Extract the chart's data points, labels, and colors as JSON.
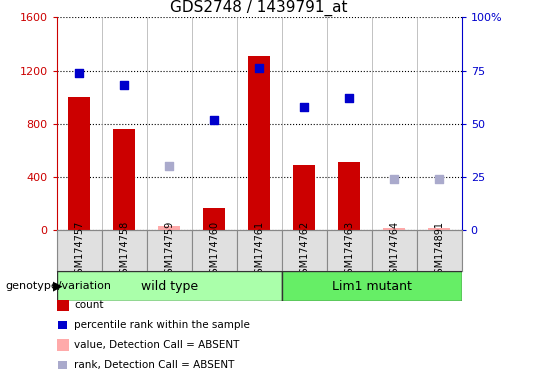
{
  "title": "GDS2748 / 1439791_at",
  "samples": [
    "GSM174757",
    "GSM174758",
    "GSM174759",
    "GSM174760",
    "GSM174761",
    "GSM174762",
    "GSM174763",
    "GSM174764",
    "GSM174891"
  ],
  "count_values": [
    1000,
    760,
    null,
    170,
    1310,
    490,
    510,
    null,
    null
  ],
  "count_absent": [
    null,
    null,
    30,
    null,
    null,
    null,
    null,
    20,
    20
  ],
  "percentile_values": [
    74,
    68,
    null,
    52,
    76,
    58,
    62,
    null,
    null
  ],
  "percentile_absent": [
    null,
    null,
    30,
    null,
    null,
    null,
    null,
    24,
    24
  ],
  "wild_type_indices": [
    0,
    1,
    2,
    3,
    4
  ],
  "lim1_mutant_indices": [
    5,
    6,
    7,
    8
  ],
  "ylim_left": [
    0,
    1600
  ],
  "ylim_right": [
    0,
    100
  ],
  "yticks_left": [
    0,
    400,
    800,
    1200,
    1600
  ],
  "yticks_right": [
    0,
    25,
    50,
    75,
    100
  ],
  "ytick_right_labels": [
    "0",
    "25",
    "50",
    "75",
    "100%"
  ],
  "bar_color": "#cc0000",
  "bar_absent_color": "#ffaaaa",
  "dot_color": "#0000cc",
  "dot_absent_color": "#aaaacc",
  "wild_type_color": "#aaffaa",
  "lim1_color": "#66ee66",
  "left_axis_color": "#cc0000",
  "right_axis_color": "#0000cc",
  "bar_width": 0.5,
  "dot_size": 40,
  "legend_items": [
    {
      "label": "count",
      "color": "#cc0000",
      "type": "bar"
    },
    {
      "label": "percentile rank within the sample",
      "color": "#0000cc",
      "type": "dot"
    },
    {
      "label": "value, Detection Call = ABSENT",
      "color": "#ffaaaa",
      "type": "bar"
    },
    {
      "label": "rank, Detection Call = ABSENT",
      "color": "#aaaacc",
      "type": "dot"
    }
  ],
  "header_label": "genotype/variation"
}
